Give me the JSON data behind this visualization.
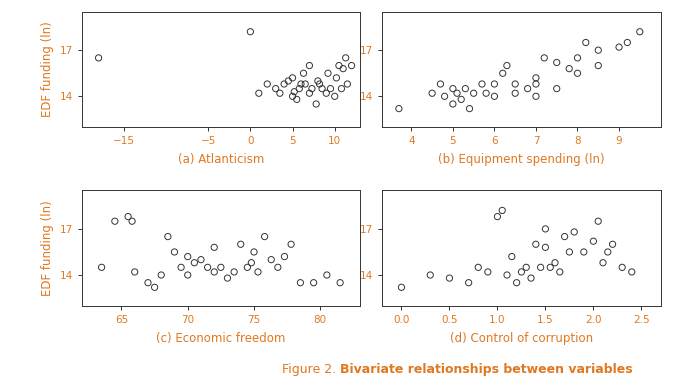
{
  "panel_a": {
    "xlabel": "(a) Atlanticism",
    "xticks": [
      -15,
      -5,
      0,
      5,
      10
    ],
    "xlim": [
      -20,
      13
    ],
    "yticks": [
      14,
      17
    ],
    "ylim": [
      12.0,
      19.5
    ],
    "x": [
      -18,
      0,
      1,
      2,
      3,
      3.5,
      4,
      4.5,
      5,
      5,
      5.2,
      5.5,
      5.8,
      6,
      6.3,
      6.5,
      7,
      7,
      7.3,
      7.8,
      8,
      8.2,
      8.5,
      9,
      9.2,
      9.5,
      10,
      10.2,
      10.5,
      10.8,
      11,
      11.3,
      11.5,
      12
    ],
    "y": [
      16.5,
      18.2,
      14.2,
      14.8,
      14.5,
      14.2,
      14.8,
      15.0,
      14.0,
      15.2,
      14.3,
      13.8,
      14.5,
      14.8,
      15.5,
      14.8,
      14.2,
      16.0,
      14.5,
      13.5,
      15.0,
      14.8,
      14.5,
      14.2,
      15.5,
      14.5,
      14.0,
      15.2,
      16.0,
      14.5,
      15.8,
      16.5,
      14.8,
      16.0
    ]
  },
  "panel_b": {
    "xlabel": "(b) Equipment spending (ln)",
    "xticks": [
      4,
      5,
      6,
      7,
      8,
      9
    ],
    "xlim": [
      3.3,
      10.0
    ],
    "yticks": [
      14,
      17
    ],
    "ylim": [
      12.0,
      19.5
    ],
    "x": [
      3.7,
      4.5,
      4.7,
      4.8,
      5.0,
      5.0,
      5.1,
      5.2,
      5.3,
      5.4,
      5.5,
      5.7,
      5.8,
      6.0,
      6.0,
      6.2,
      6.3,
      6.5,
      6.5,
      6.8,
      7.0,
      7.0,
      7.0,
      7.2,
      7.5,
      7.5,
      7.8,
      8.0,
      8.0,
      8.2,
      8.5,
      8.5,
      9.0,
      9.2,
      9.5
    ],
    "y": [
      13.2,
      14.2,
      14.8,
      14.0,
      14.5,
      13.5,
      14.2,
      13.8,
      14.5,
      13.2,
      14.2,
      14.8,
      14.2,
      14.0,
      14.8,
      15.5,
      16.0,
      14.2,
      14.8,
      14.5,
      14.0,
      15.2,
      14.8,
      16.5,
      14.5,
      16.2,
      15.8,
      15.5,
      16.5,
      17.5,
      16.0,
      17.0,
      17.2,
      17.5,
      18.2
    ]
  },
  "panel_c": {
    "xlabel": "(c) Economic freedom",
    "xticks": [
      65,
      70,
      75,
      80
    ],
    "xlim": [
      62,
      83
    ],
    "yticks": [
      14,
      17
    ],
    "ylim": [
      12.0,
      19.5
    ],
    "x": [
      63.5,
      64.5,
      65.5,
      65.8,
      66.0,
      67.0,
      67.5,
      68.0,
      68.5,
      69.0,
      69.5,
      70.0,
      70.0,
      70.5,
      71.0,
      71.5,
      72.0,
      72.0,
      72.5,
      73.0,
      73.5,
      74.0,
      74.5,
      74.8,
      75.0,
      75.3,
      75.8,
      76.3,
      76.8,
      77.3,
      77.8,
      78.5,
      79.5,
      80.5,
      81.5
    ],
    "y": [
      14.5,
      17.5,
      17.8,
      17.5,
      14.2,
      13.5,
      13.2,
      14.0,
      16.5,
      15.5,
      14.5,
      14.0,
      15.2,
      14.8,
      15.0,
      14.5,
      14.2,
      15.8,
      14.5,
      13.8,
      14.2,
      16.0,
      14.5,
      14.8,
      15.5,
      14.2,
      16.5,
      15.0,
      14.5,
      15.2,
      16.0,
      13.5,
      13.5,
      14.0,
      13.5
    ]
  },
  "panel_d": {
    "xlabel": "(d) Control of corruption",
    "xticks": [
      0.0,
      0.5,
      1.0,
      1.5,
      2.0,
      2.5
    ],
    "xlim": [
      -0.2,
      2.7
    ],
    "yticks": [
      14,
      17
    ],
    "ylim": [
      12.0,
      19.5
    ],
    "x": [
      0.0,
      0.3,
      0.5,
      0.7,
      0.8,
      0.9,
      1.0,
      1.05,
      1.1,
      1.15,
      1.2,
      1.25,
      1.3,
      1.35,
      1.4,
      1.45,
      1.5,
      1.5,
      1.55,
      1.6,
      1.65,
      1.7,
      1.75,
      1.8,
      1.9,
      2.0,
      2.05,
      2.1,
      2.15,
      2.2,
      2.3,
      2.4
    ],
    "y": [
      13.2,
      14.0,
      13.8,
      13.5,
      14.5,
      14.2,
      17.8,
      18.2,
      14.0,
      15.2,
      13.5,
      14.2,
      14.5,
      13.8,
      16.0,
      14.5,
      15.8,
      17.0,
      14.5,
      14.8,
      14.2,
      16.5,
      15.5,
      16.8,
      15.5,
      16.2,
      17.5,
      14.8,
      15.5,
      16.0,
      14.5,
      14.2
    ]
  },
  "ylabel": "EDF funding (ln)",
  "orange": "#E07820",
  "black": "#333333",
  "background_color": "#ffffff",
  "marker_size": 20,
  "marker_linewidth": 0.7,
  "caption_normal": "Figure 2. ",
  "caption_bold": "Bivariate relationships between variables"
}
